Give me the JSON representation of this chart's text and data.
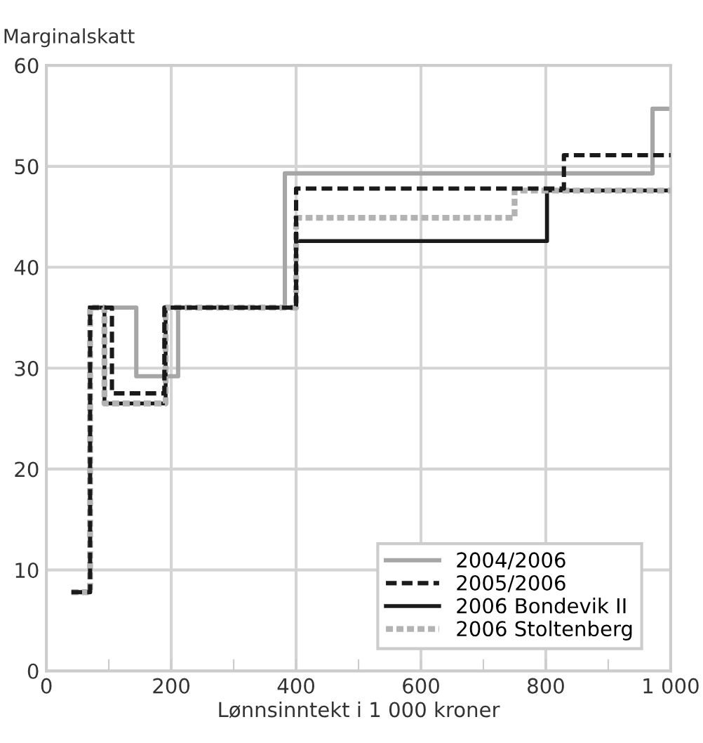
{
  "chart_data": {
    "type": "step",
    "ylabel": "Marginalskatt",
    "xlabel": "Lønnsinntekt i 1 000 kroner",
    "xlim": [
      0,
      1000
    ],
    "ylim": [
      0,
      60
    ],
    "xticks": [
      0,
      {
        "value": 100,
        "label": null
      },
      200,
      {
        "value": 300,
        "label": null
      },
      400,
      {
        "value": 500,
        "label": null
      },
      600,
      {
        "value": 700,
        "label": null
      },
      800,
      {
        "value": 900,
        "label": null
      },
      {
        "value": 1000,
        "label": "1 000"
      }
    ],
    "yticks": [
      0,
      10,
      20,
      30,
      40,
      50,
      60
    ],
    "grid": true,
    "legend": "bottom right",
    "series": [
      {
        "name": "2004/2006",
        "color": "#a6a6a6",
        "line_style": "solid",
        "x": [
          70,
          144,
          211,
          382,
          971,
          1000
        ],
        "values": [
          36,
          29.2,
          36,
          49.3,
          55.7,
          55.7
        ]
      },
      {
        "name": "2005/2006",
        "color": "#1a1a1a",
        "line_style": "dashed",
        "x": [
          40,
          70,
          105,
          189,
          400,
          829,
          1000
        ],
        "values": [
          7.8,
          36,
          27.5,
          36,
          47.8,
          51.1,
          51.1
        ]
      },
      {
        "name": "2006 Bondevik II",
        "color": "#1a1a1a",
        "line_style": "solid",
        "x": [
          70,
          93,
          191,
          400,
          802,
          1000
        ],
        "values": [
          36,
          26.5,
          36,
          42.6,
          47.6,
          47.6
        ]
      },
      {
        "name": "2006 Stoltenberg",
        "color": "#b3b3b3",
        "line_style": "dotted",
        "x": [
          40,
          70,
          93,
          191,
          400,
          750,
          1000
        ],
        "values": [
          7.8,
          36,
          26.5,
          36,
          44.9,
          47.6,
          47.6
        ]
      }
    ]
  }
}
